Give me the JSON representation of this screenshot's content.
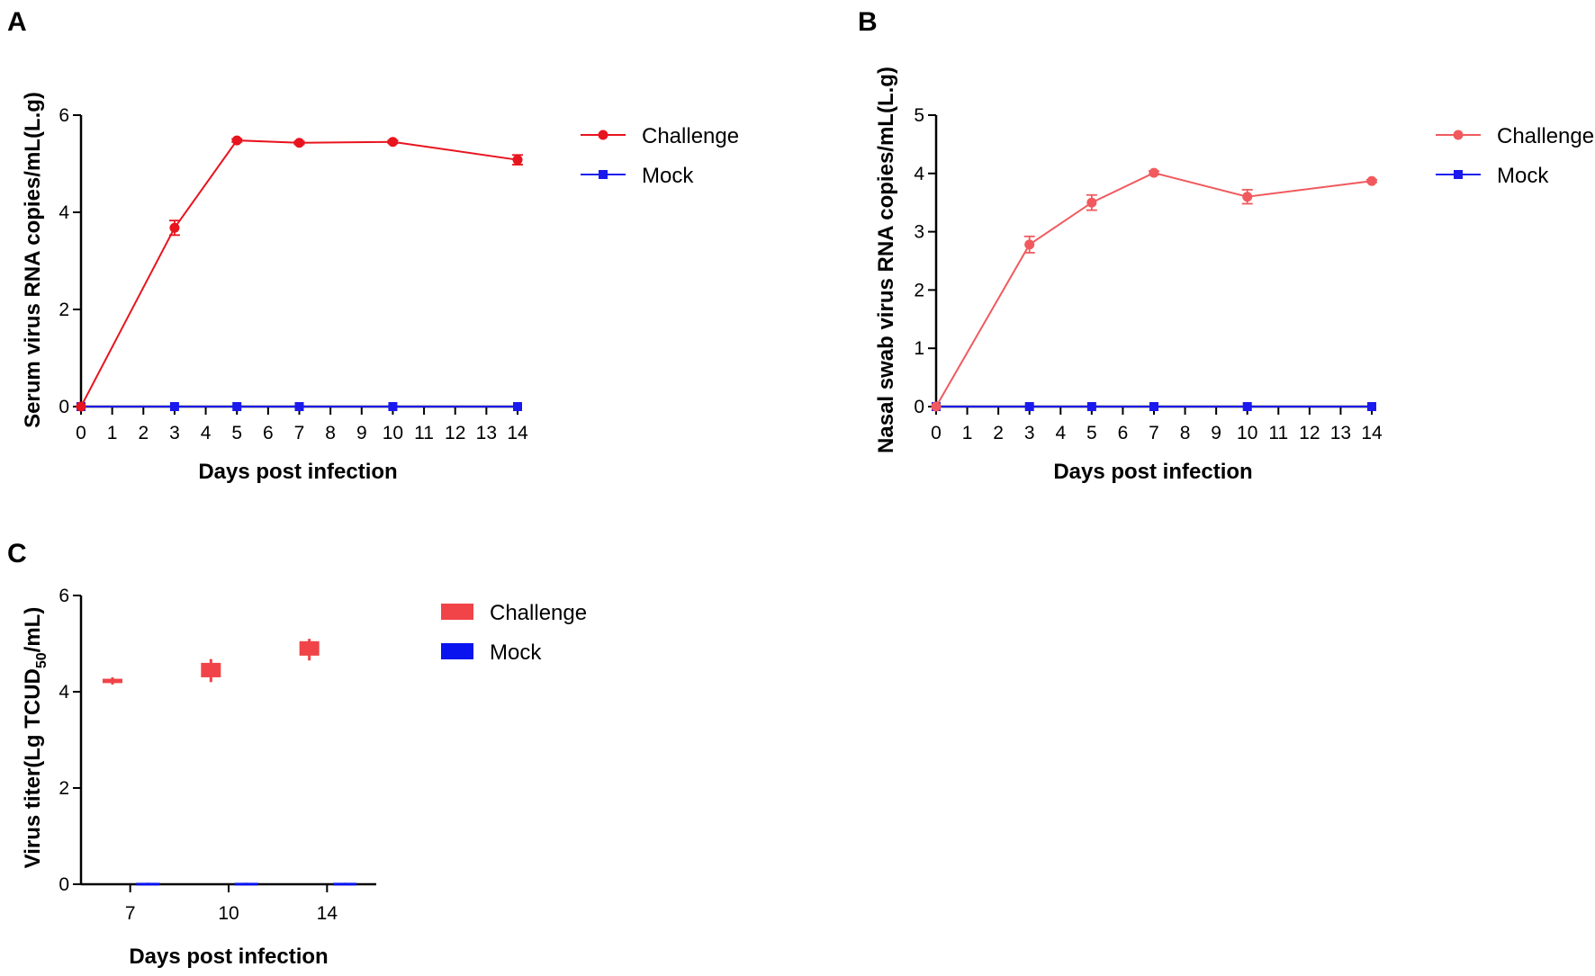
{
  "chart_data": [
    {
      "panel": "A",
      "type": "line",
      "xlabel": "Days post infection",
      "ylabel": "Serum virus RNA copies/mL(L.g)",
      "xlim": [
        0,
        14
      ],
      "ylim": [
        0,
        6
      ],
      "x_ticks": [
        0,
        1,
        2,
        3,
        4,
        5,
        6,
        7,
        8,
        9,
        10,
        11,
        12,
        13,
        14
      ],
      "y_ticks": [
        0,
        2,
        4,
        6
      ],
      "series": [
        {
          "name": "Challenge",
          "color": "#e8141e",
          "marker": "circle",
          "x": [
            0,
            3,
            5,
            7,
            10,
            14
          ],
          "values": [
            0,
            3.68,
            5.48,
            5.43,
            5.45,
            5.08
          ],
          "error": [
            0,
            0.15,
            0.03,
            0.03,
            0.03,
            0.1
          ]
        },
        {
          "name": "Mock",
          "color": "#1a1aee",
          "marker": "square",
          "x": [
            0,
            3,
            5,
            7,
            10,
            14
          ],
          "values": [
            0,
            0,
            0,
            0,
            0,
            0
          ],
          "error": [
            0,
            0,
            0,
            0,
            0,
            0
          ]
        }
      ]
    },
    {
      "panel": "B",
      "type": "line",
      "xlabel": "Days post infection",
      "ylabel": "Nasal swab virus RNA copies/mL(L.g)",
      "xlim": [
        0,
        14
      ],
      "ylim": [
        0,
        5
      ],
      "x_ticks": [
        0,
        1,
        2,
        3,
        4,
        5,
        6,
        7,
        8,
        9,
        10,
        11,
        12,
        13,
        14
      ],
      "y_ticks": [
        0,
        1,
        2,
        3,
        4,
        5
      ],
      "series": [
        {
          "name": "Challenge",
          "color": "#f05a5e",
          "marker": "circle",
          "x": [
            0,
            3,
            5,
            7,
            10,
            14
          ],
          "values": [
            0,
            2.78,
            3.5,
            4.01,
            3.6,
            3.87
          ],
          "error": [
            0,
            0.14,
            0.13,
            0.03,
            0.12,
            0.02
          ]
        },
        {
          "name": "Mock",
          "color": "#1a1aee",
          "marker": "square",
          "x": [
            0,
            3,
            5,
            7,
            10,
            14
          ],
          "values": [
            0,
            0,
            0,
            0,
            0,
            0
          ],
          "error": [
            0,
            0,
            0,
            0,
            0,
            0
          ]
        }
      ]
    },
    {
      "panel": "C",
      "type": "box",
      "xlabel": "Days post infection",
      "ylabel_main": "Virus titer(Lg TCUD",
      "ylabel_sub": "50",
      "ylabel_end": "/mL)",
      "categories": [
        "7",
        "10",
        "14"
      ],
      "ylim": [
        0,
        6
      ],
      "y_ticks": [
        0,
        2,
        4,
        6
      ],
      "series": [
        {
          "name": "Challenge",
          "color": "#f04448",
          "boxes": [
            {
              "low": 4.15,
              "q1": 4.18,
              "q3": 4.27,
              "high": 4.3
            },
            {
              "low": 4.2,
              "q1": 4.3,
              "q3": 4.6,
              "high": 4.68
            },
            {
              "low": 4.65,
              "q1": 4.75,
              "q3": 5.05,
              "high": 5.1
            }
          ]
        },
        {
          "name": "Mock",
          "color": "#0a14ee",
          "boxes": [
            {
              "low": 0,
              "q1": 0,
              "q3": 0.03,
              "high": 0.03
            },
            {
              "low": 0,
              "q1": 0,
              "q3": 0.03,
              "high": 0.03
            },
            {
              "low": 0,
              "q1": 0,
              "q3": 0.03,
              "high": 0.03
            }
          ]
        }
      ]
    }
  ]
}
